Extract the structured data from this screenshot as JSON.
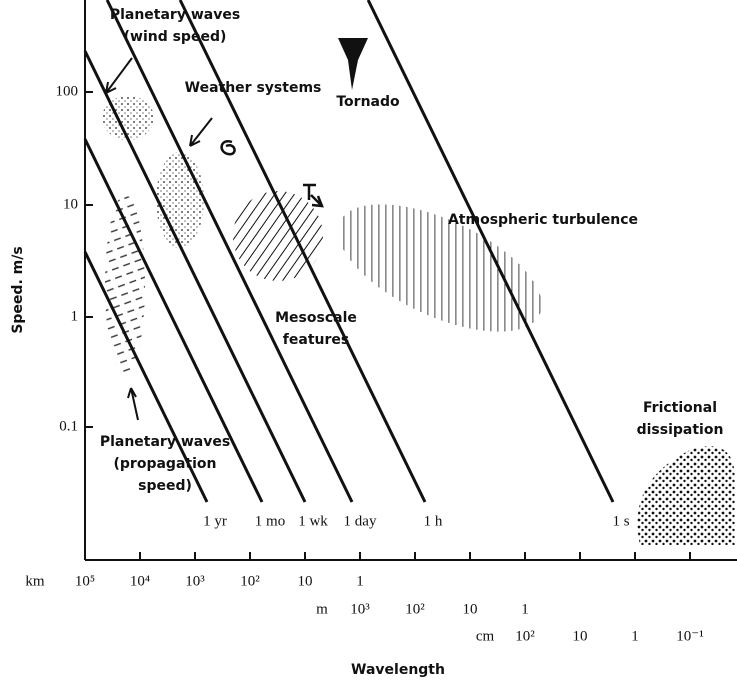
{
  "y_axis": {
    "label": "Speed. m/s",
    "ticks": [
      "100",
      "10",
      "1",
      "0.1"
    ]
  },
  "x_axis": {
    "label": "Wavelength",
    "rows": [
      {
        "unit": "km",
        "ticks": [
          "10⁵",
          "10⁴",
          "10³",
          "10²",
          "10",
          "1"
        ]
      },
      {
        "unit": "m",
        "ticks": [
          "10³",
          "10²",
          "10",
          "1"
        ]
      },
      {
        "unit": "cm",
        "ticks": [
          "10²",
          "10",
          "1",
          "10⁻¹"
        ]
      }
    ]
  },
  "period_lines": [
    "1 yr",
    "1 mo",
    "1 wk",
    "1 day",
    "1 h",
    "1 s"
  ],
  "regions": [
    {
      "lines": [
        "Planetary waves",
        "(wind speed)"
      ]
    },
    {
      "lines": [
        "Weather systems"
      ]
    },
    {
      "lines": [
        "Tornado"
      ]
    },
    {
      "lines": [
        "Atmospheric turbulence"
      ]
    },
    {
      "lines": [
        "Mesoscale",
        "features"
      ]
    },
    {
      "lines": [
        "Planetary waves",
        "(propagation",
        "speed)"
      ]
    },
    {
      "lines": [
        "Frictional",
        "dissipation"
      ]
    }
  ]
}
